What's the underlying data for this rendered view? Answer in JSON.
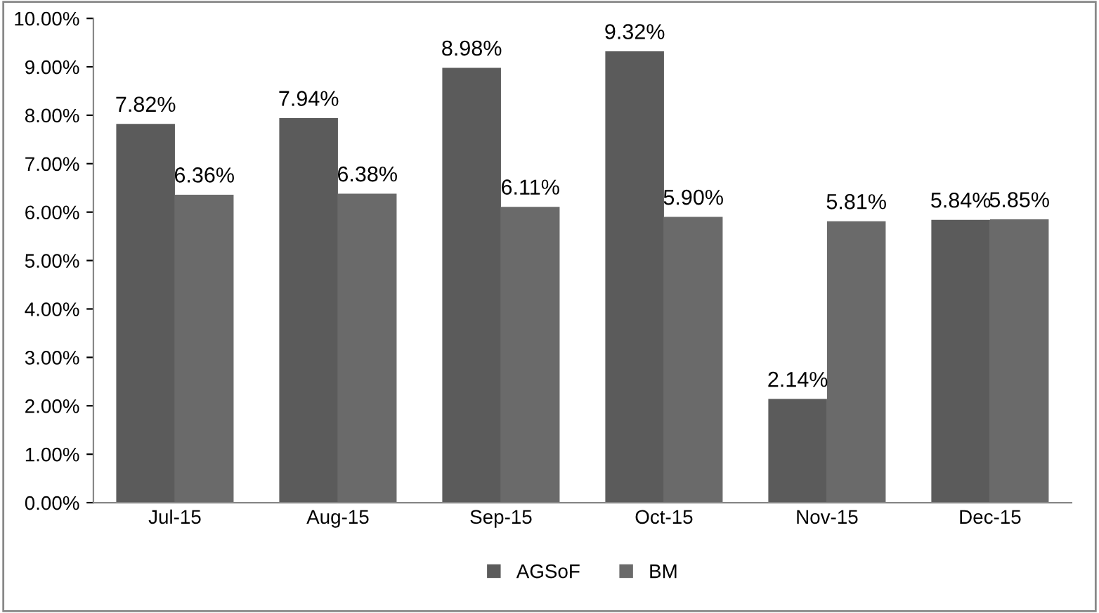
{
  "chart_data": {
    "type": "bar",
    "categories": [
      "Jul-15",
      "Aug-15",
      "Sep-15",
      "Oct-15",
      "Nov-15",
      "Dec-15"
    ],
    "series": [
      {
        "name": "AGSoF",
        "color": "#5b5b5b",
        "values": [
          7.82,
          7.94,
          8.98,
          9.32,
          2.14,
          5.84
        ],
        "value_labels": [
          "7.82%",
          "7.94%",
          "8.98%",
          "9.32%",
          "2.14%",
          "5.84%"
        ]
      },
      {
        "name": "BM",
        "color": "#6a6a6a",
        "values": [
          6.36,
          6.38,
          6.11,
          5.9,
          5.81,
          5.85
        ],
        "value_labels": [
          "6.36%",
          "6.38%",
          "6.11%",
          "5.90%",
          "5.81%",
          "5.85%"
        ]
      }
    ],
    "ylim": [
      0,
      10
    ],
    "yticks": [
      {
        "value": 0,
        "label": "0.00%"
      },
      {
        "value": 1,
        "label": "1.00%"
      },
      {
        "value": 2,
        "label": "2.00%"
      },
      {
        "value": 3,
        "label": "3.00%"
      },
      {
        "value": 4,
        "label": "4.00%"
      },
      {
        "value": 5,
        "label": "5.00%"
      },
      {
        "value": 6,
        "label": "6.00%"
      },
      {
        "value": 7,
        "label": "7.00%"
      },
      {
        "value": 8,
        "label": "8.00%"
      },
      {
        "value": 9,
        "label": "9.00%"
      },
      {
        "value": 10,
        "label": "10.00%"
      }
    ],
    "grid": false,
    "legend": "bottom"
  }
}
